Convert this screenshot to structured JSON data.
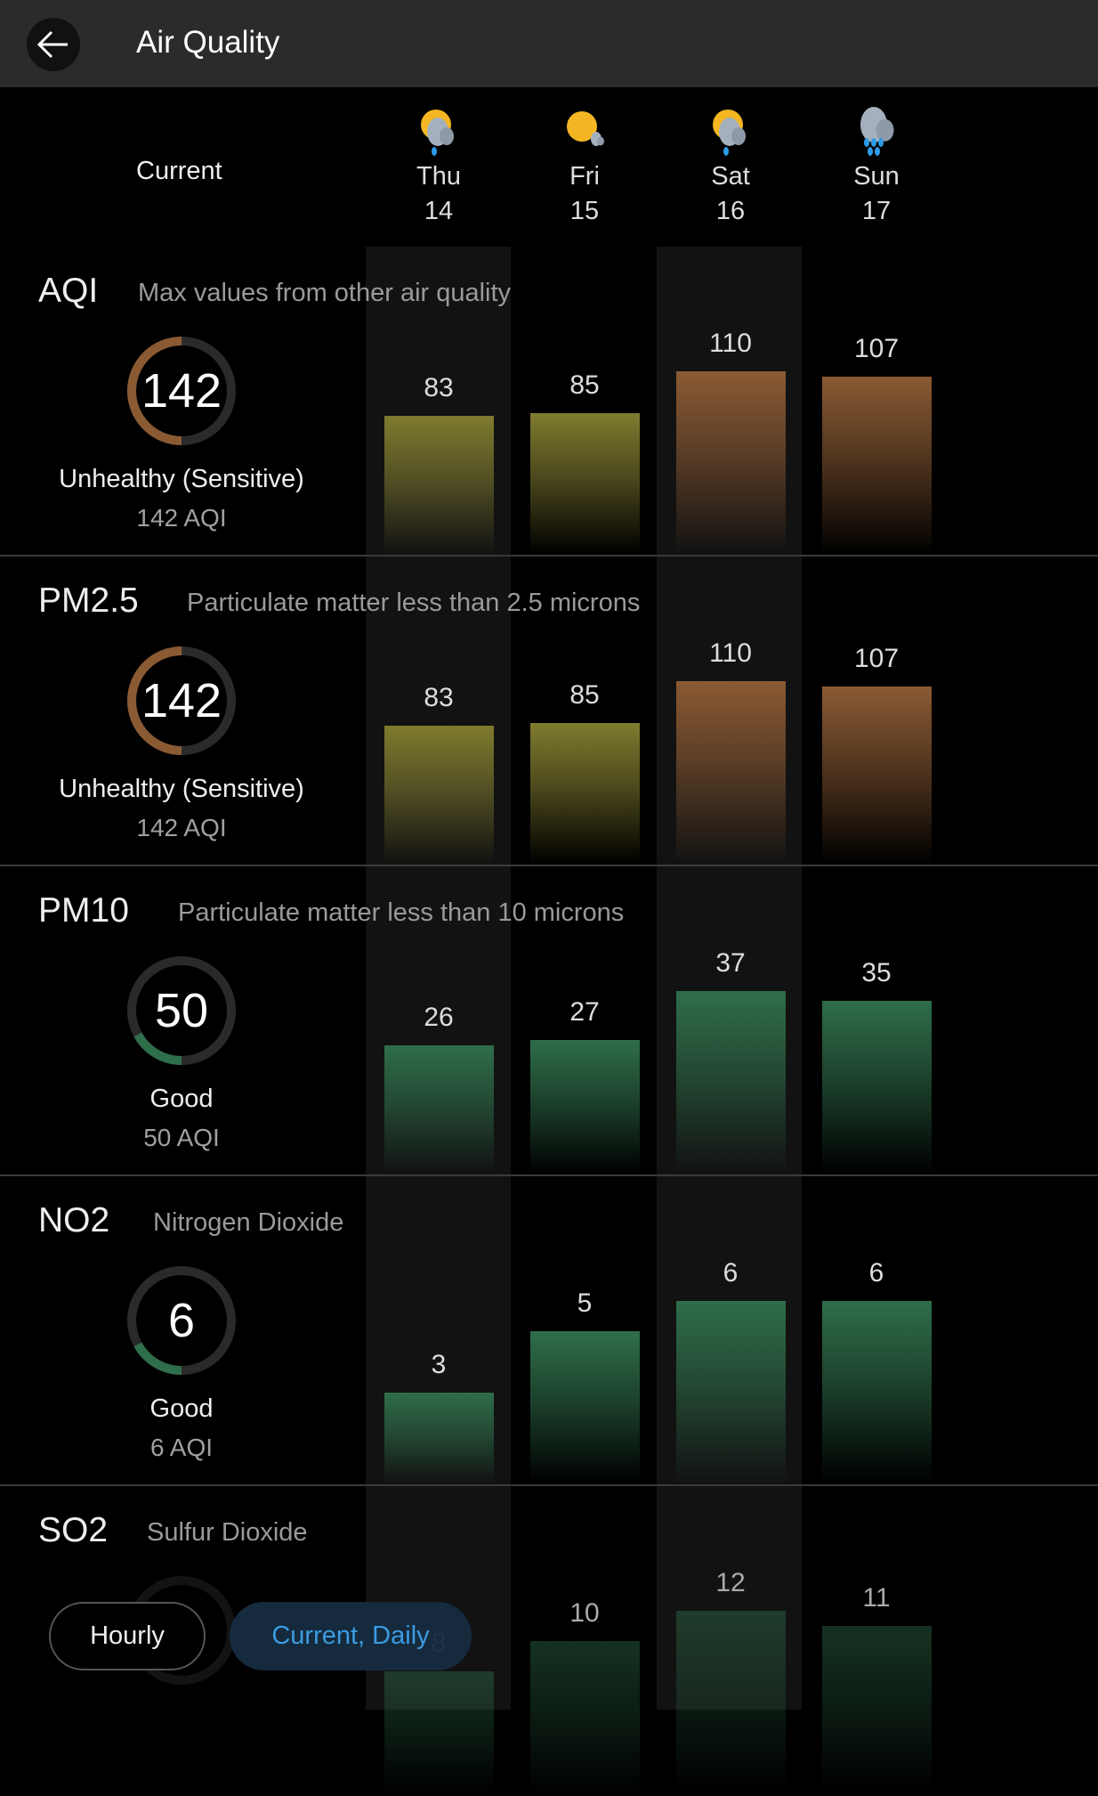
{
  "header": {
    "title": "Air Quality",
    "back_icon": "arrow-left-icon"
  },
  "columns": {
    "current_label": "Current",
    "days": [
      {
        "name": "Thu",
        "date": "14",
        "icon": "partly-sunny-rain-icon"
      },
      {
        "name": "Fri",
        "date": "15",
        "icon": "mostly-sunny-icon"
      },
      {
        "name": "Sat",
        "date": "16",
        "icon": "partly-sunny-rain-icon"
      },
      {
        "name": "Sun",
        "date": "17",
        "icon": "cloudy-rain-icon"
      }
    ]
  },
  "colors": {
    "moderate": "#7f7b2f",
    "unhealthy_sensitive": "#8a5a33",
    "good": "#2f6e4a",
    "ring_track": "#2a2a2a",
    "accent": "#3b9be0"
  },
  "chart_data": [
    {
      "type": "bar",
      "title": "AQI",
      "description": "Max values from other air quality",
      "current": {
        "value": "142",
        "status": "Unhealthy (Sensitive)",
        "sub": "142 AQI",
        "ring_fraction": 0.5,
        "level": "unhealthy_sensitive"
      },
      "categories": [
        "Thu 14",
        "Fri 15",
        "Sat 16",
        "Sun 17"
      ],
      "values": [
        83,
        85,
        110,
        107
      ],
      "levels": [
        "moderate",
        "moderate",
        "unhealthy_sensitive",
        "unhealthy_sensitive"
      ]
    },
    {
      "type": "bar",
      "title": "PM2.5",
      "description": "Particulate matter less than 2.5 microns",
      "current": {
        "value": "142",
        "status": "Unhealthy (Sensitive)",
        "sub": "142 AQI",
        "ring_fraction": 0.5,
        "level": "unhealthy_sensitive"
      },
      "categories": [
        "Thu 14",
        "Fri 15",
        "Sat 16",
        "Sun 17"
      ],
      "values": [
        83,
        85,
        110,
        107
      ],
      "levels": [
        "moderate",
        "moderate",
        "unhealthy_sensitive",
        "unhealthy_sensitive"
      ]
    },
    {
      "type": "bar",
      "title": "PM10",
      "description": "Particulate matter less than 10 microns",
      "current": {
        "value": "50",
        "status": "Good",
        "sub": "50 AQI",
        "ring_fraction": 0.17,
        "level": "good"
      },
      "categories": [
        "Thu 14",
        "Fri 15",
        "Sat 16",
        "Sun 17"
      ],
      "values": [
        26,
        27,
        37,
        35
      ],
      "levels": [
        "good",
        "good",
        "good",
        "good"
      ]
    },
    {
      "type": "bar",
      "title": "NO2",
      "description": "Nitrogen Dioxide",
      "current": {
        "value": "6",
        "status": "Good",
        "sub": "6 AQI",
        "ring_fraction": 0.17,
        "level": "good"
      },
      "categories": [
        "Thu 14",
        "Fri 15",
        "Sat 16",
        "Sun 17"
      ],
      "values": [
        3,
        5,
        6,
        6
      ],
      "levels": [
        "good",
        "good",
        "good",
        "good"
      ]
    },
    {
      "type": "bar",
      "title": "SO2",
      "description": "Sulfur Dioxide",
      "categories": [
        "Thu 14",
        "Fri 15",
        "Sat 16",
        "Sun 17"
      ],
      "values": [
        8,
        10,
        12,
        11
      ],
      "levels": [
        "good",
        "good",
        "good",
        "good"
      ]
    }
  ],
  "bottom_buttons": {
    "hourly": "Hourly",
    "current_daily": "Current, Daily",
    "selected": "current_daily"
  }
}
